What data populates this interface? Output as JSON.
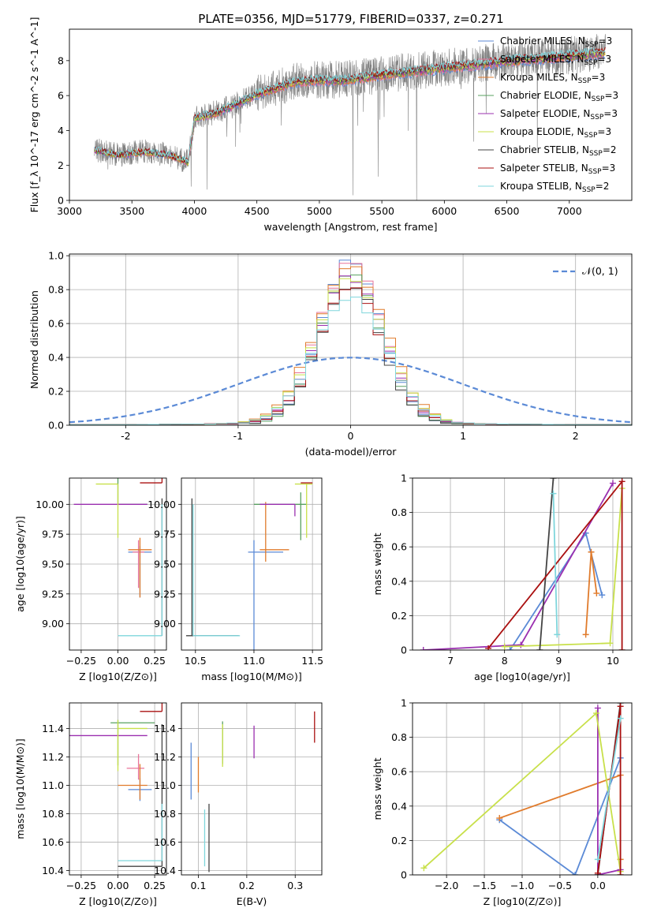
{
  "figure_title": "PLATE=0356, MJD=51779, FIBERID=0337, z=0.271",
  "legend_entries": [
    {
      "name": "Chabrier MILES, N_SSP=3",
      "color": "#5b8ad6"
    },
    {
      "name": "Salpeter MILES, N_SSP=3",
      "color": "#e8749a"
    },
    {
      "name": "Kroupa MILES, N_SSP=3",
      "color": "#e07b2c"
    },
    {
      "name": "Chabrier ELODIE, N_SSP=3",
      "color": "#58a060"
    },
    {
      "name": "Salpeter ELODIE, N_SSP=3",
      "color": "#9b30b0"
    },
    {
      "name": "Kroupa ELODIE, N_SSP=3",
      "color": "#c8e04a"
    },
    {
      "name": "Chabrier STELIB, N_SSP=2",
      "color": "#444444"
    },
    {
      "name": "Salpeter STELIB, N_SSP=3",
      "color": "#aa1010"
    },
    {
      "name": "Kroupa STELIB, N_SSP=2",
      "color": "#7fd6dc"
    }
  ],
  "chart_data": [
    {
      "id": "spectrum",
      "type": "line",
      "xlabel": "wavelength [Angstrom, rest frame]",
      "ylabel": "Flux [f_λ 10^-17 erg cm^-2 s^-1 A^-1]",
      "xlim": [
        3000,
        7500
      ],
      "ylim": [
        0,
        9.8
      ],
      "xticks": [
        3000,
        3500,
        4000,
        4500,
        5000,
        5500,
        6000,
        6500,
        7000
      ],
      "yticks": [
        0,
        2,
        4,
        6,
        8
      ],
      "grid": false,
      "legend": "upper right",
      "data_series": {
        "name": "data",
        "color": "#808080",
        "x_range": [
          3200,
          7290
        ]
      },
      "continuum_knots": {
        "x": [
          3200,
          3400,
          3600,
          3800,
          3950,
          4000,
          4200,
          4500,
          4800,
          5000,
          5200,
          5500,
          6000,
          6500,
          7000,
          7290
        ],
        "y": [
          2.9,
          2.6,
          2.8,
          2.6,
          2.2,
          4.7,
          5.1,
          6.1,
          6.8,
          6.9,
          6.9,
          7.2,
          7.6,
          8.0,
          8.3,
          8.5
        ]
      }
    },
    {
      "id": "residuals",
      "type": "line",
      "xlabel": "(data-model)/error",
      "ylabel": "Normed distribution",
      "xlim": [
        -2.5,
        2.5
      ],
      "ylim": [
        0,
        1.01
      ],
      "xticks": [
        -2,
        -1,
        0,
        1,
        2
      ],
      "yticks": [
        0.0,
        0.2,
        0.4,
        0.6,
        0.8,
        1.0
      ],
      "grid": true,
      "legend": "upper right",
      "reference": {
        "name": "𝒩(0, 1)",
        "color": "#5b8ad6",
        "style": "dashed"
      },
      "hist_x_range": [
        -2.5,
        2.5
      ],
      "hist_bin_width": 0.1,
      "hist_peak_values": [
        0.96,
        0.93,
        0.91,
        0.88,
        0.86,
        0.85,
        0.82,
        0.78,
        0.74
      ]
    },
    {
      "id": "age_vs_Z",
      "type": "scatter",
      "xlabel": "Z [log10(Z/Z⊙)]",
      "ylabel": "age  [log10(age/yr)]",
      "xlim": [
        -0.33,
        0.33
      ],
      "ylim": [
        8.78,
        10.22
      ],
      "xticks": [
        -0.25,
        0.0,
        0.25
      ],
      "xticklabels": [
        "−0.25",
        "0.00",
        "0.25"
      ],
      "yticks": [
        9.0,
        9.25,
        9.5,
        9.75,
        10.0
      ],
      "yticklabels": [
        "9.00",
        "9.25",
        "9.50",
        "9.75",
        "10.00"
      ],
      "grid": true,
      "points": [
        {
          "x": 0.15,
          "y": 9.6,
          "xerr": [
            0.08,
            0.08
          ],
          "yerr": [
            0.38,
            0.05
          ],
          "color": "#5b8ad6"
        },
        {
          "x": 0.14,
          "y": 9.6,
          "xerr": [
            0.04,
            0.04
          ],
          "yerr": [
            0.3,
            0.1
          ],
          "color": "#e8749a"
        },
        {
          "x": 0.15,
          "y": 9.62,
          "xerr": [
            0.08,
            0.08
          ],
          "yerr": [
            0.4,
            0.1
          ],
          "color": "#e07b2c"
        },
        {
          "x": 0.0,
          "y": 10.0,
          "xerr": [
            0.0,
            0.2
          ],
          "yerr": [
            0.0,
            0.3
          ],
          "color": "#58a060"
        },
        {
          "x": 0.0,
          "y": 10.0,
          "xerr": [
            0.3,
            0.2
          ],
          "yerr": [
            0.0,
            0.0
          ],
          "color": "#9b30b0"
        },
        {
          "x": 0.0,
          "y": 10.17,
          "xerr": [
            0.15,
            0.0
          ],
          "yerr": [
            0.45,
            0.0
          ],
          "color": "#c8e04a"
        },
        {
          "x": 0.3,
          "y": 8.9,
          "xerr": [
            0.0,
            0.0
          ],
          "yerr": [
            0.0,
            1.15
          ],
          "color": "#444444"
        },
        {
          "x": 0.3,
          "y": 10.18,
          "xerr": [
            0.15,
            0.0
          ],
          "yerr": [
            0.0,
            0.3
          ],
          "color": "#aa1010"
        },
        {
          "x": 0.3,
          "y": 8.9,
          "xerr": [
            0.3,
            0.0
          ],
          "yerr": [
            0.0,
            1.1
          ],
          "color": "#7fd6dc"
        }
      ]
    },
    {
      "id": "age_vs_mass",
      "type": "scatter",
      "xlabel": "mass [log10(M/M⊙)]",
      "ylabel": "",
      "xlim": [
        10.38,
        11.58
      ],
      "ylim": [
        8.78,
        10.22
      ],
      "xticks": [
        10.5,
        11.0,
        11.5
      ],
      "xticklabels": [
        "10.5",
        "11.0",
        "11.5"
      ],
      "yticks": [
        9.0,
        9.25,
        9.5,
        9.75,
        10.0
      ],
      "yticklabels": [
        "9.00",
        "9.25",
        "9.50",
        "9.75",
        "10.00"
      ],
      "grid": true,
      "points": [
        {
          "x": 11.0,
          "y": 9.6,
          "xerr": [
            0.05,
            0.25
          ],
          "yerr": [
            1.1,
            0.1
          ],
          "color": "#5b8ad6"
        },
        {
          "x": 11.1,
          "y": 9.62,
          "xerr": [
            0.05,
            0.2
          ],
          "yerr": [
            0.1,
            0.4
          ],
          "color": "#e07b2c"
        },
        {
          "x": 11.4,
          "y": 10.0,
          "xerr": [
            0.4,
            0.05
          ],
          "yerr": [
            0.3,
            0.1
          ],
          "color": "#58a060"
        },
        {
          "x": 11.35,
          "y": 10.0,
          "xerr": [
            0.3,
            0.0
          ],
          "yerr": [
            0.1,
            0.0
          ],
          "color": "#9b30b0"
        },
        {
          "x": 11.45,
          "y": 10.17,
          "xerr": [
            0.1,
            0.05
          ],
          "yerr": [
            0.45,
            0.0
          ],
          "color": "#c8e04a"
        },
        {
          "x": 10.47,
          "y": 8.9,
          "xerr": [
            0.05,
            0.4
          ],
          "yerr": [
            0.0,
            1.15
          ],
          "color": "#444444"
        },
        {
          "x": 11.5,
          "y": 10.18,
          "xerr": [
            0.1,
            0.0
          ],
          "yerr": [
            0.0,
            0.0
          ],
          "color": "#aa1010"
        },
        {
          "x": 10.48,
          "y": 8.9,
          "xerr": [
            0.0,
            0.4
          ],
          "yerr": [
            0.0,
            1.1
          ],
          "color": "#7fd6dc"
        }
      ]
    },
    {
      "id": "weight_vs_age",
      "type": "line",
      "xlabel": "age  [log10(age/yr)]",
      "ylabel": "mass weight",
      "xlim": [
        6.3,
        10.35
      ],
      "ylim": [
        0,
        1.0
      ],
      "xticks": [
        7,
        8,
        9,
        10
      ],
      "yticks": [
        0.0,
        0.2,
        0.4,
        0.6,
        0.8,
        1.0
      ],
      "grid": true,
      "series": [
        {
          "color": "#5b8ad6",
          "x": [
            8.1,
            9.5,
            9.8
          ],
          "y": [
            0.0,
            0.68,
            0.32
          ]
        },
        {
          "color": "#e07b2c",
          "x": [
            9.5,
            9.6,
            9.7
          ],
          "y": [
            0.09,
            0.57,
            0.33
          ]
        },
        {
          "color": "#9b30b0",
          "x": [
            6.5,
            8.3,
            10.0
          ],
          "y": [
            0.0,
            0.03,
            0.97
          ]
        },
        {
          "color": "#c8e04a",
          "x": [
            8.0,
            9.95,
            10.17
          ],
          "y": [
            0.02,
            0.04,
            0.94
          ]
        },
        {
          "color": "#444444",
          "x": [
            8.65,
            8.9
          ],
          "y": [
            0.0,
            1.0
          ]
        },
        {
          "color": "#aa1010",
          "x": [
            7.7,
            10.17,
            10.17
          ],
          "y": [
            0.01,
            0.98,
            0.0
          ]
        },
        {
          "color": "#7fd6dc",
          "x": [
            8.9,
            8.97
          ],
          "y": [
            0.91,
            0.09
          ]
        }
      ]
    },
    {
      "id": "mass_vs_Z",
      "type": "scatter",
      "xlabel": "Z [log10(Z/Z⊙)]",
      "ylabel": "mass [log10(M/M⊙)]",
      "xlim": [
        -0.33,
        0.33
      ],
      "ylim": [
        10.37,
        11.58
      ],
      "xticks": [
        -0.25,
        0.0,
        0.25
      ],
      "xticklabels": [
        "−0.25",
        "0.00",
        "0.25"
      ],
      "yticks": [
        10.4,
        10.6,
        10.8,
        11.0,
        11.2,
        11.4
      ],
      "yticklabels": [
        "10.4",
        "10.6",
        "10.8",
        "11.0",
        "11.2",
        "11.4"
      ],
      "grid": true,
      "points": [
        {
          "x": 0.15,
          "y": 10.97,
          "xerr": [
            0.08,
            0.08
          ],
          "yerr": [
            0.08,
            0.08
          ],
          "color": "#5b8ad6"
        },
        {
          "x": 0.14,
          "y": 11.12,
          "xerr": [
            0.08,
            0.04
          ],
          "yerr": [
            0.08,
            0.1
          ],
          "color": "#e8749a"
        },
        {
          "x": 0.15,
          "y": 11.0,
          "xerr": [
            0.15,
            0.05
          ],
          "yerr": [
            0.1,
            0.15
          ],
          "color": "#e07b2c"
        },
        {
          "x": 0.0,
          "y": 11.44,
          "xerr": [
            0.05,
            0.25
          ],
          "yerr": [
            0.3,
            0.02
          ],
          "color": "#58a060"
        },
        {
          "x": 0.0,
          "y": 11.35,
          "xerr": [
            0.33,
            0.2
          ],
          "yerr": [
            0.0,
            0.0
          ],
          "color": "#9b30b0"
        },
        {
          "x": 0.0,
          "y": 11.4,
          "xerr": [
            0.0,
            0.2
          ],
          "yerr": [
            0.3,
            0.06
          ],
          "color": "#c8e04a"
        },
        {
          "x": 0.3,
          "y": 10.43,
          "xerr": [
            0.3,
            0.0
          ],
          "yerr": [
            0.0,
            1.0
          ],
          "color": "#444444"
        },
        {
          "x": 0.3,
          "y": 11.52,
          "xerr": [
            0.15,
            0.0
          ],
          "yerr": [
            0.0,
            0.22
          ],
          "color": "#aa1010"
        },
        {
          "x": 0.3,
          "y": 10.47,
          "xerr": [
            0.3,
            0.0
          ],
          "yerr": [
            0.0,
            0.4
          ],
          "color": "#7fd6dc"
        }
      ]
    },
    {
      "id": "mass_vs_ebv",
      "type": "scatter",
      "xlabel": "E(B-V)",
      "ylabel": "",
      "xlim": [
        0.065,
        0.355
      ],
      "ylim": [
        10.37,
        11.58
      ],
      "xticks": [
        0.1,
        0.2,
        0.3
      ],
      "xticklabels": [
        "0.1",
        "0.2",
        "0.3"
      ],
      "yticks": [
        10.4,
        10.6,
        10.8,
        11.0,
        11.2,
        11.4
      ],
      "yticklabels": [
        "10.4",
        "10.6",
        "10.8",
        "11.0",
        "11.2",
        "11.4"
      ],
      "grid": true,
      "points": [
        {
          "x": 0.085,
          "y": 11.1,
          "xerr": [
            0,
            0
          ],
          "yerr": [
            0.2,
            0.2
          ],
          "color": "#5b8ad6"
        },
        {
          "x": 0.1,
          "y": 11.05,
          "xerr": [
            0,
            0
          ],
          "yerr": [
            0.1,
            0.15
          ],
          "color": "#e07b2c"
        },
        {
          "x": 0.15,
          "y": 11.3,
          "xerr": [
            0,
            0
          ],
          "yerr": [
            0.15,
            0.15
          ],
          "color": "#58a060"
        },
        {
          "x": 0.215,
          "y": 11.27,
          "xerr": [
            0,
            0
          ],
          "yerr": [
            0.08,
            0.15
          ],
          "color": "#9b30b0"
        },
        {
          "x": 0.15,
          "y": 11.33,
          "xerr": [
            0,
            0
          ],
          "yerr": [
            0.2,
            0.1
          ],
          "color": "#c8e04a"
        },
        {
          "x": 0.122,
          "y": 10.63,
          "xerr": [
            0,
            0
          ],
          "yerr": [
            0.24,
            0.24
          ],
          "color": "#444444"
        },
        {
          "x": 0.34,
          "y": 11.42,
          "xerr": [
            0,
            0
          ],
          "yerr": [
            0.12,
            0.1
          ],
          "color": "#aa1010"
        },
        {
          "x": 0.113,
          "y": 10.63,
          "xerr": [
            0,
            0
          ],
          "yerr": [
            0.2,
            0.2
          ],
          "color": "#7fd6dc"
        }
      ]
    },
    {
      "id": "weight_vs_Z",
      "type": "line",
      "xlabel": "Z [log10(Z/Z⊙)]",
      "ylabel": "mass weight",
      "xlim": [
        -2.45,
        0.45
      ],
      "ylim": [
        0,
        1.0
      ],
      "xticks": [
        -2.0,
        -1.5,
        -1.0,
        -0.5,
        0.0
      ],
      "xticklabels": [
        "−2.0",
        "−1.5",
        "−1.0",
        "−0.5",
        "0.0"
      ],
      "yticks": [
        0.0,
        0.2,
        0.4,
        0.6,
        0.8,
        1.0
      ],
      "grid": true,
      "series": [
        {
          "color": "#5b8ad6",
          "x": [
            -1.3,
            -0.3,
            0.3
          ],
          "y": [
            0.32,
            0.0,
            0.68
          ]
        },
        {
          "color": "#e07b2c",
          "x": [
            -1.3,
            0.3,
            0.3
          ],
          "y": [
            0.33,
            0.58,
            0.09
          ]
        },
        {
          "color": "#9b30b0",
          "x": [
            0.0,
            0.0,
            0.3
          ],
          "y": [
            0.97,
            0.0,
            0.03
          ]
        },
        {
          "color": "#c8e04a",
          "x": [
            -2.3,
            -0.02,
            0.3
          ],
          "y": [
            0.04,
            0.94,
            0.02
          ]
        },
        {
          "color": "#444444",
          "x": [
            0.0,
            0.3
          ],
          "y": [
            0.0,
            1.0
          ]
        },
        {
          "color": "#aa1010",
          "x": [
            0.0,
            0.3,
            0.3
          ],
          "y": [
            0.01,
            0.98,
            0.0
          ]
        },
        {
          "color": "#7fd6dc",
          "x": [
            0.3,
            0.0
          ],
          "y": [
            0.91,
            0.09
          ]
        }
      ]
    }
  ]
}
